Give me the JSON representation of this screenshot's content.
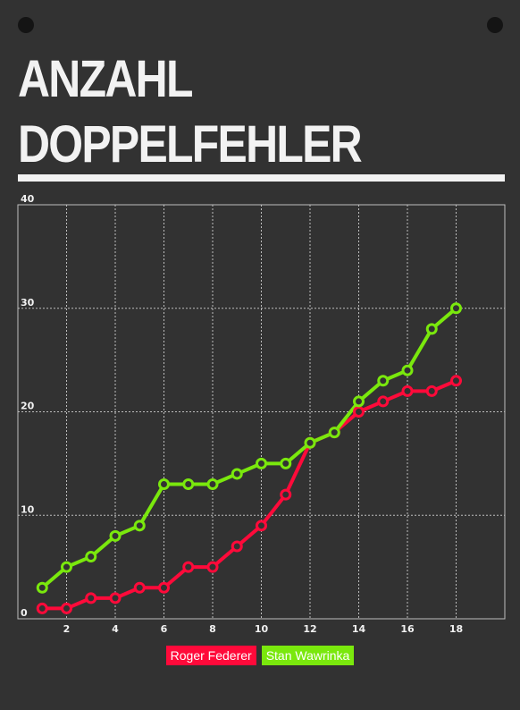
{
  "page": {
    "title_line1": "ANZAHL",
    "title_line2": "DOPPELFEHLER"
  },
  "colors": {
    "background": "#323232",
    "grid": "#bdbdbd",
    "text": "#f2f2f2",
    "federer": "#ff0a3a",
    "wawrinka": "#7ae80d"
  },
  "chart_data": {
    "type": "line",
    "title": "ANZAHL DOPPELFEHLER",
    "x": [
      1,
      2,
      3,
      4,
      5,
      6,
      7,
      8,
      9,
      10,
      11,
      12,
      13,
      14,
      15,
      16,
      17,
      18
    ],
    "xlim": [
      0,
      20
    ],
    "ylim": [
      0,
      40
    ],
    "x_ticks": [
      2,
      4,
      6,
      8,
      10,
      12,
      14,
      16,
      18
    ],
    "y_ticks": [
      0,
      10,
      20,
      30,
      40
    ],
    "grid": true,
    "legend_position": "bottom-center",
    "series": [
      {
        "name": "Roger Federer",
        "color": "#ff0a3a",
        "values": [
          1,
          1,
          2,
          2,
          3,
          3,
          5,
          5,
          7,
          9,
          12,
          17,
          18,
          20,
          21,
          22,
          22,
          23
        ]
      },
      {
        "name": "Stan Wawrinka",
        "color": "#7ae80d",
        "values": [
          3,
          5,
          6,
          8,
          9,
          13,
          13,
          13,
          14,
          15,
          15,
          17,
          18,
          21,
          23,
          24,
          28,
          30
        ]
      }
    ]
  }
}
